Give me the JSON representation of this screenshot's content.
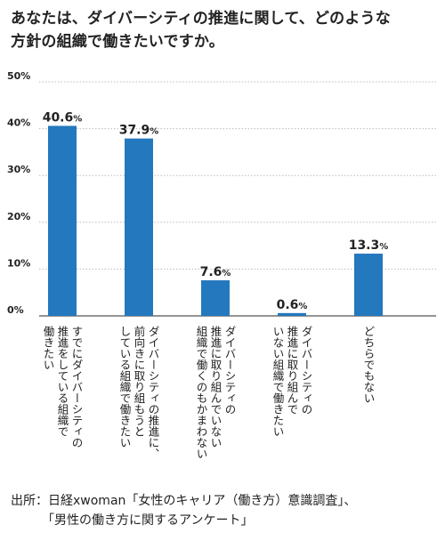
{
  "title_lines": [
    "あなたは、ダイバーシティの推進に関して、どのような",
    "方針の組織で働きたいですか。"
  ],
  "source_lines": [
    "出所：日経xwoman「女性のキャリア（働き方）意識調査」、",
    "　　　「男性の働き方に関するアンケート」"
  ],
  "chart_data": {
    "type": "bar",
    "categories": [
      "すでにダイバーシティの推進をしている組織で働きたい",
      "ダイバーシティの推進に、前向きに取り組もうとしている組織で働きたい",
      "ダイバーシティの推進に取り組んでいない組織で働くのもかまわない",
      "ダイバーシティの推進に取り組んでいない組織で働きたい",
      "どちらでもない"
    ],
    "category_label_columns": [
      [
        "すでにダイバーシティの",
        "推進をしている組織で",
        "働きたい"
      ],
      [
        "ダイバーシティの推進に、",
        "前向きに取り組もうと",
        "している組織で働きたい"
      ],
      [
        "ダイバーシティの",
        "推進に取り組んでいない",
        "組織で働くのもかまわない"
      ],
      [
        "ダイバーシティの",
        "推進に取り組んで",
        "いない組織で働きたい"
      ],
      [
        "どちらでもない"
      ]
    ],
    "values": [
      40.6,
      37.9,
      7.6,
      0.6,
      13.3
    ],
    "value_labels": [
      "40.6",
      "37.9",
      "7.6",
      "0.6",
      "13.3"
    ],
    "unit": "%",
    "yticks": [
      "0%",
      "10%",
      "20%",
      "30%",
      "40%",
      "50%"
    ],
    "ylim": [
      0,
      50
    ],
    "grid": true,
    "bar_color": "#2478be"
  }
}
